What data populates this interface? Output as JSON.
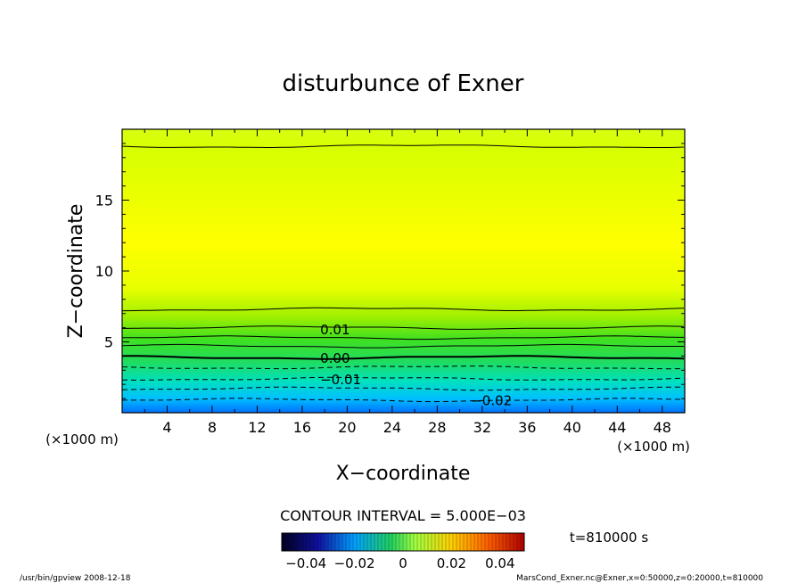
{
  "chart_data": {
    "type": "contour",
    "title": "disturbunce of Exner",
    "xlabel": "X−coordinate",
    "ylabel": "Z−coordinate",
    "x_unit_left": "(×1000 m)",
    "x_unit_right": "(×1000 m)",
    "xlim": [
      0,
      50
    ],
    "ylim": [
      0,
      20
    ],
    "x_ticks": [
      4,
      8,
      12,
      16,
      20,
      24,
      28,
      32,
      36,
      40,
      44,
      48
    ],
    "x_tick_labels": [
      "4",
      "8",
      "12",
      "16",
      "20",
      "24",
      "28",
      "32",
      "36",
      "40",
      "44",
      "48"
    ],
    "y_ticks": [
      5,
      10,
      15
    ],
    "y_tick_labels": [
      "5",
      "10",
      "15"
    ],
    "contour_labels": [
      {
        "text": "0.01",
        "x": 17.6,
        "z": 5.9
      },
      {
        "text": "0.00",
        "x": 17.6,
        "z": 3.9
      },
      {
        "text": "−0.01",
        "x": 17.6,
        "z": 2.4
      },
      {
        "text": "−0.02",
        "x": 31.0,
        "z": 0.9
      }
    ],
    "contour_levels_z": [
      {
        "z": 18.8,
        "style": "solid"
      },
      {
        "z": 7.3,
        "style": "solid"
      },
      {
        "z": 6.0,
        "style": "solid"
      },
      {
        "z": 5.3,
        "style": "solid"
      },
      {
        "z": 4.7,
        "style": "solid"
      },
      {
        "z": 3.9,
        "style": "bold"
      },
      {
        "z": 3.2,
        "style": "dashed"
      },
      {
        "z": 2.4,
        "style": "dashed"
      },
      {
        "z": 1.7,
        "style": "dashed"
      },
      {
        "z": 0.9,
        "style": "dashed"
      }
    ],
    "contour_interval_text": "CONTOUR INTERVAL = 5.000E−03",
    "colorbar": {
      "min": -0.05,
      "max": 0.05,
      "tick_labels": [
        "−0.04",
        "−0.02",
        "0",
        "0.02",
        "0.04"
      ],
      "tick_values": [
        -0.04,
        -0.02,
        0,
        0.02,
        0.04
      ]
    },
    "time_text": "t=810000 s",
    "colors": {
      "top": "#d8ff00",
      "mid": "#ffff00",
      "lower_green": "#22dd22",
      "cyan": "#00dddd",
      "bottom_blue": "#0088ff"
    }
  },
  "footer": {
    "left": "/usr/bin/gpview  2008-12-18",
    "right": "MarsCond_Exner.nc@Exner,x=0:50000,z=0:20000,t=810000"
  }
}
